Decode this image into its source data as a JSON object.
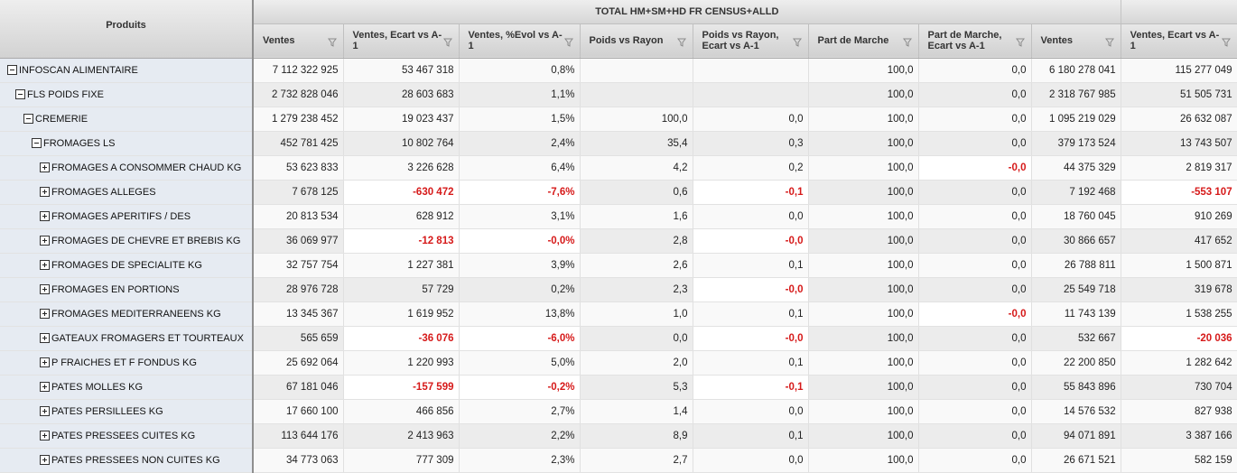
{
  "header": {
    "produits_label": "Produits",
    "group_label": "TOTAL HM+SM+HD FR CENSUS+ALLD",
    "columns": [
      "Ventes",
      "Ventes, Ecart vs A-1",
      "Ventes, %Evol vs A-1",
      "Poids vs Rayon",
      "Poids vs Rayon, Ecart vs A-1",
      "Part de Marche",
      "Part de Marche, Ecart vs A-1",
      "Ventes",
      "Ventes, Ecart vs A-1"
    ]
  },
  "icons": {
    "expanded": "minus-box-icon",
    "collapsed": "plus-box-icon",
    "filter": "filter-funnel-icon"
  },
  "colors": {
    "negative": "#d61a1a",
    "product_column": "#e6ebf2"
  },
  "rows": [
    {
      "label": "INFOSCAN ALIMENTAIRE",
      "level": 0,
      "expanded": true,
      "values": [
        "7 112 322 925",
        "53 467 318",
        "0,8%",
        "",
        "",
        "100,0",
        "0,0",
        "6 180 278 041",
        "115 277 049"
      ],
      "neg": []
    },
    {
      "label": "FLS POIDS FIXE",
      "level": 1,
      "expanded": true,
      "values": [
        "2 732 828 046",
        "28 603 683",
        "1,1%",
        "",
        "",
        "100,0",
        "0,0",
        "2 318 767 985",
        "51 505 731"
      ],
      "neg": []
    },
    {
      "label": "CREMERIE",
      "level": 2,
      "expanded": true,
      "values": [
        "1 279 238 452",
        "19 023 437",
        "1,5%",
        "100,0",
        "0,0",
        "100,0",
        "0,0",
        "1 095 219 029",
        "26 632 087"
      ],
      "neg": []
    },
    {
      "label": "FROMAGES LS",
      "level": 3,
      "expanded": true,
      "values": [
        "452 781 425",
        "10 802 764",
        "2,4%",
        "35,4",
        "0,3",
        "100,0",
        "0,0",
        "379 173 524",
        "13 743 507"
      ],
      "neg": []
    },
    {
      "label": "FROMAGES A CONSOMMER CHAUD KG",
      "level": 4,
      "expanded": false,
      "values": [
        "53 623 833",
        "3 226 628",
        "6,4%",
        "4,2",
        "0,2",
        "100,0",
        "-0,0",
        "44 375 329",
        "2 819 317"
      ],
      "neg": [
        6
      ]
    },
    {
      "label": "FROMAGES ALLEGES",
      "level": 4,
      "expanded": false,
      "values": [
        "7 678 125",
        "-630 472",
        "-7,6%",
        "0,6",
        "-0,1",
        "100,0",
        "0,0",
        "7 192 468",
        "-553 107"
      ],
      "neg": [
        1,
        2,
        4,
        8
      ]
    },
    {
      "label": "FROMAGES APERITIFS / DES",
      "level": 4,
      "expanded": false,
      "values": [
        "20 813 534",
        "628 912",
        "3,1%",
        "1,6",
        "0,0",
        "100,0",
        "0,0",
        "18 760 045",
        "910 269"
      ],
      "neg": []
    },
    {
      "label": "FROMAGES DE CHEVRE ET BREBIS KG",
      "level": 4,
      "expanded": false,
      "values": [
        "36 069 977",
        "-12 813",
        "-0,0%",
        "2,8",
        "-0,0",
        "100,0",
        "0,0",
        "30 866 657",
        "417 652"
      ],
      "neg": [
        1,
        2,
        4
      ]
    },
    {
      "label": "FROMAGES DE SPECIALITE KG",
      "level": 4,
      "expanded": false,
      "values": [
        "32 757 754",
        "1 227 381",
        "3,9%",
        "2,6",
        "0,1",
        "100,0",
        "0,0",
        "26 788 811",
        "1 500 871"
      ],
      "neg": []
    },
    {
      "label": "FROMAGES EN PORTIONS",
      "level": 4,
      "expanded": false,
      "values": [
        "28 976 728",
        "57 729",
        "0,2%",
        "2,3",
        "-0,0",
        "100,0",
        "0,0",
        "25 549 718",
        "319 678"
      ],
      "neg": [
        4
      ]
    },
    {
      "label": "FROMAGES MEDITERRANEENS KG",
      "level": 4,
      "expanded": false,
      "values": [
        "13 345 367",
        "1 619 952",
        "13,8%",
        "1,0",
        "0,1",
        "100,0",
        "-0,0",
        "11 743 139",
        "1 538 255"
      ],
      "neg": [
        6
      ]
    },
    {
      "label": "GATEAUX FROMAGERS ET TOURTEAUX",
      "level": 4,
      "expanded": false,
      "values": [
        "565 659",
        "-36 076",
        "-6,0%",
        "0,0",
        "-0,0",
        "100,0",
        "0,0",
        "532 667",
        "-20 036"
      ],
      "neg": [
        1,
        2,
        4,
        8
      ]
    },
    {
      "label": "P FRAICHES ET F FONDUS KG",
      "level": 4,
      "expanded": false,
      "values": [
        "25 692 064",
        "1 220 993",
        "5,0%",
        "2,0",
        "0,1",
        "100,0",
        "0,0",
        "22 200 850",
        "1 282 642"
      ],
      "neg": []
    },
    {
      "label": "PATES MOLLES KG",
      "level": 4,
      "expanded": false,
      "values": [
        "67 181 046",
        "-157 599",
        "-0,2%",
        "5,3",
        "-0,1",
        "100,0",
        "0,0",
        "55 843 896",
        "730 704"
      ],
      "neg": [
        1,
        2,
        4
      ]
    },
    {
      "label": "PATES PERSILLEES KG",
      "level": 4,
      "expanded": false,
      "values": [
        "17 660 100",
        "466 856",
        "2,7%",
        "1,4",
        "0,0",
        "100,0",
        "0,0",
        "14 576 532",
        "827 938"
      ],
      "neg": []
    },
    {
      "label": "PATES PRESSEES CUITES KG",
      "level": 4,
      "expanded": false,
      "values": [
        "113 644 176",
        "2 413 963",
        "2,2%",
        "8,9",
        "0,1",
        "100,0",
        "0,0",
        "94 071 891",
        "3 387 166"
      ],
      "neg": []
    },
    {
      "label": "PATES PRESSEES NON CUITES KG",
      "level": 4,
      "expanded": false,
      "values": [
        "34 773 063",
        "777 309",
        "2,3%",
        "2,7",
        "0,0",
        "100,0",
        "0,0",
        "26 671 521",
        "582 159"
      ],
      "neg": []
    }
  ]
}
